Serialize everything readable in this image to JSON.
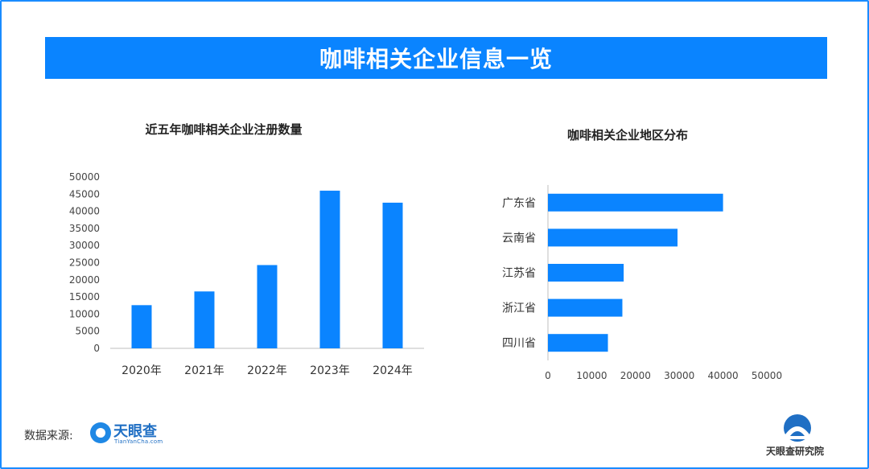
{
  "header": {
    "title": "咖啡相关企业信息一览"
  },
  "chart_data": [
    {
      "type": "bar",
      "title": "近五年咖啡相关企业注册数量",
      "categories": [
        "2020年",
        "2021年",
        "2022年",
        "2023年",
        "2024年"
      ],
      "values": [
        12600,
        16600,
        24300,
        46000,
        42500
      ],
      "ylim": [
        0,
        50000
      ],
      "yticks": [
        0,
        5000,
        10000,
        15000,
        20000,
        25000,
        30000,
        35000,
        40000,
        45000,
        50000
      ],
      "color": "#0A84FF",
      "xlabel": "",
      "ylabel": ""
    },
    {
      "type": "bar",
      "orientation": "horizontal",
      "title": "咖啡相关企业地区分布",
      "categories": [
        "广东省",
        "云南省",
        "江苏省",
        "浙江省",
        "四川省"
      ],
      "values": [
        40000,
        29600,
        17300,
        17000,
        13700
      ],
      "xlim": [
        0,
        50000
      ],
      "xticks": [
        0,
        10000,
        20000,
        30000,
        40000,
        50000
      ],
      "color": "#0A84FF",
      "xlabel": "",
      "ylabel": ""
    }
  ],
  "footer": {
    "source_label": "数据来源:",
    "logo_name": "天眼查",
    "logo_url_text": "TianYanCha.com",
    "watermark_name": "天眼查研究院"
  }
}
